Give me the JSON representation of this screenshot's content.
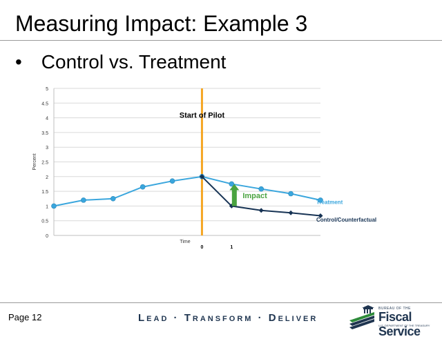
{
  "slide": {
    "title": "Measuring Impact: Example 3",
    "bullet_symbol": "•",
    "bullet_text": "Control vs. Treatment",
    "page_label": "Page 12",
    "tagline": "Lead · Transform · Deliver"
  },
  "logo": {
    "small_text": "BUREAU OF THE",
    "main_text": "Fiscal Service",
    "sub_text": "U.S. DEPARTMENT OF THE TREASURY",
    "icon": "eagle-building-logo-icon",
    "colors": {
      "navy": "#1f3550",
      "green": "#2e8b3a"
    }
  },
  "chart_data": {
    "type": "line",
    "ylabel": "Percent",
    "xlabel": "Time",
    "ylim": [
      0,
      5
    ],
    "yticks": [
      "0",
      "0.5",
      "1",
      "1.5",
      "2",
      "2.5",
      "3",
      "3.5",
      "4",
      "4.5",
      "5"
    ],
    "x_markers": [
      {
        "x": 5,
        "label": "0"
      },
      {
        "x": 6,
        "label": "1"
      }
    ],
    "xlim": [
      0,
      9
    ],
    "grid": "horizontal",
    "series": [
      {
        "name": "Treatment",
        "color": "#3aa6dd",
        "marker": "circle",
        "x": [
          0,
          1,
          2,
          3,
          4,
          5,
          6,
          7,
          8,
          9
        ],
        "values": [
          1.0,
          1.2,
          1.25,
          1.65,
          1.85,
          2.0,
          1.75,
          1.58,
          1.42,
          1.2
        ]
      },
      {
        "name": "Control/Counterfactual",
        "color": "#173354",
        "marker": "diamond",
        "x": [
          5,
          6,
          7,
          8,
          9
        ],
        "values": [
          2.0,
          1.0,
          0.85,
          0.77,
          0.67
        ]
      }
    ],
    "pilot_line": {
      "x": 5,
      "label": "Start of Pilot",
      "color": "#f5a623"
    },
    "impact_arrow": {
      "x": 6,
      "from": 1.0,
      "to": 1.75,
      "label": "Impact",
      "color": "#4aa340"
    }
  }
}
